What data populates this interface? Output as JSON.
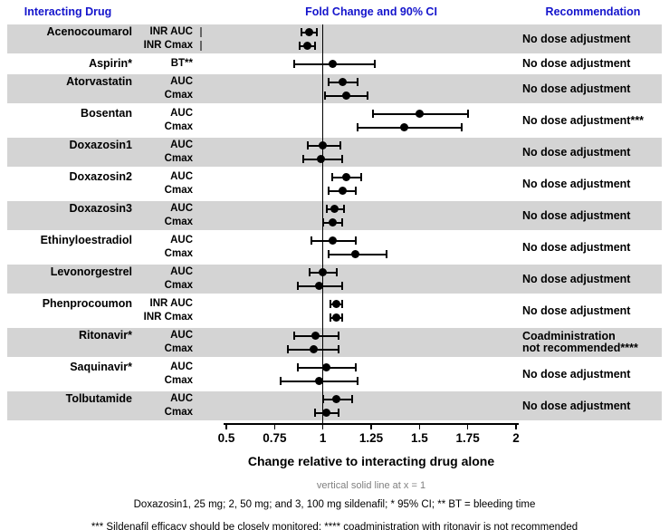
{
  "figure": {
    "header": {
      "interacting_drug": "Interacting Drug",
      "fold_change": "Fold Change and 90% CI",
      "recommendation": "Recommendation"
    },
    "colors": {
      "header_text": "#1414cc",
      "band": "#d4d4d4",
      "marker": "#000000",
      "note_text": "#808080"
    }
  },
  "chart_data": {
    "type": "forest",
    "title": "Fold Change and 90% CI",
    "xlabel": "Change relative to interacting drug alone",
    "x_note": "vertical solid line at x = 1",
    "footnote1": "Doxazosin1, 25 mg; 2, 50 mg; and 3, 100 mg sildenafil; * 95% CI; ** BT = bleeding time",
    "footnote2": "*** Sildenafil efficacy should be closely monitored; **** coadministration with ritonavir is not recommended",
    "xlim": [
      0.5,
      2
    ],
    "reference_line": 1,
    "grid": false,
    "xticks": [
      {
        "value": 0.5,
        "label": "0.5"
      },
      {
        "value": 0.75,
        "label": "0.75"
      },
      {
        "value": 1,
        "label": "1"
      },
      {
        "value": 1.25,
        "label": "1.25"
      },
      {
        "value": 1.5,
        "label": "1.5"
      },
      {
        "value": 1.75,
        "label": "1.75"
      },
      {
        "value": 2,
        "label": "2"
      }
    ],
    "groups": [
      {
        "drug": "Acenocoumarol",
        "shaded": true,
        "recommendation": "No dose adjustment",
        "rows": [
          {
            "measure": "INR AUC",
            "estimate": 0.93,
            "ci_low": 0.89,
            "ci_high": 0.97
          },
          {
            "measure": "INR Cmax",
            "estimate": 0.92,
            "ci_low": 0.88,
            "ci_high": 0.96
          }
        ]
      },
      {
        "drug": "Aspirin*",
        "shaded": false,
        "recommendation": "No dose adjustment",
        "rows": [
          {
            "measure": "BT**",
            "estimate": 1.05,
            "ci_low": 0.85,
            "ci_high": 1.27
          }
        ]
      },
      {
        "drug": "Atorvastatin",
        "shaded": true,
        "recommendation": "No dose adjustment",
        "rows": [
          {
            "measure": "AUC",
            "estimate": 1.1,
            "ci_low": 1.03,
            "ci_high": 1.18
          },
          {
            "measure": "Cmax",
            "estimate": 1.12,
            "ci_low": 1.01,
            "ci_high": 1.23
          }
        ]
      },
      {
        "drug": "Bosentan",
        "shaded": false,
        "recommendation": "No dose adjustment***",
        "rows": [
          {
            "measure": "AUC",
            "estimate": 1.5,
            "ci_low": 1.26,
            "ci_high": 1.75
          },
          {
            "measure": "Cmax",
            "estimate": 1.42,
            "ci_low": 1.18,
            "ci_high": 1.72
          }
        ]
      },
      {
        "drug": "Doxazosin1",
        "shaded": true,
        "recommendation": "No dose adjustment",
        "rows": [
          {
            "measure": "AUC",
            "estimate": 1.0,
            "ci_low": 0.92,
            "ci_high": 1.09
          },
          {
            "measure": "Cmax",
            "estimate": 0.99,
            "ci_low": 0.9,
            "ci_high": 1.1
          }
        ]
      },
      {
        "drug": "Doxazosin2",
        "shaded": false,
        "recommendation": "No dose adjustment",
        "rows": [
          {
            "measure": "AUC",
            "estimate": 1.12,
            "ci_low": 1.05,
            "ci_high": 1.2
          },
          {
            "measure": "Cmax",
            "estimate": 1.1,
            "ci_low": 1.03,
            "ci_high": 1.17
          }
        ]
      },
      {
        "drug": "Doxazosin3",
        "shaded": true,
        "recommendation": "No dose adjustment",
        "rows": [
          {
            "measure": "AUC",
            "estimate": 1.06,
            "ci_low": 1.02,
            "ci_high": 1.11
          },
          {
            "measure": "Cmax",
            "estimate": 1.05,
            "ci_low": 1.0,
            "ci_high": 1.1
          }
        ]
      },
      {
        "drug": "Ethinyloestradiol",
        "shaded": false,
        "recommendation": "No dose adjustment",
        "rows": [
          {
            "measure": "AUC",
            "estimate": 1.05,
            "ci_low": 0.94,
            "ci_high": 1.17
          },
          {
            "measure": "Cmax",
            "estimate": 1.17,
            "ci_low": 1.03,
            "ci_high": 1.33
          }
        ]
      },
      {
        "drug": "Levonorgestrel",
        "shaded": true,
        "recommendation": "No dose adjustment",
        "rows": [
          {
            "measure": "AUC",
            "estimate": 1.0,
            "ci_low": 0.93,
            "ci_high": 1.07
          },
          {
            "measure": "Cmax",
            "estimate": 0.98,
            "ci_low": 0.87,
            "ci_high": 1.1
          }
        ]
      },
      {
        "drug": "Phenprocoumon",
        "shaded": false,
        "recommendation": "No dose adjustment",
        "rows": [
          {
            "measure": "INR AUC",
            "estimate": 1.07,
            "ci_low": 1.04,
            "ci_high": 1.1
          },
          {
            "measure": "INR Cmax",
            "estimate": 1.07,
            "ci_low": 1.04,
            "ci_high": 1.1
          }
        ]
      },
      {
        "drug": "Ritonavir*",
        "shaded": true,
        "recommendation": "Coadministration\nnot recommended****",
        "rows": [
          {
            "measure": "AUC",
            "estimate": 0.96,
            "ci_low": 0.85,
            "ci_high": 1.08
          },
          {
            "measure": "Cmax",
            "estimate": 0.95,
            "ci_low": 0.82,
            "ci_high": 1.08
          }
        ]
      },
      {
        "drug": "Saquinavir*",
        "shaded": false,
        "recommendation": "No dose adjustment",
        "rows": [
          {
            "measure": "AUC",
            "estimate": 1.02,
            "ci_low": 0.87,
            "ci_high": 1.17
          },
          {
            "measure": "Cmax",
            "estimate": 0.98,
            "ci_low": 0.78,
            "ci_high": 1.18
          }
        ]
      },
      {
        "drug": "Tolbutamide",
        "shaded": true,
        "recommendation": "No dose adjustment",
        "rows": [
          {
            "measure": "AUC",
            "estimate": 1.07,
            "ci_low": 1.0,
            "ci_high": 1.15
          },
          {
            "measure": "Cmax",
            "estimate": 1.02,
            "ci_low": 0.96,
            "ci_high": 1.08
          }
        ]
      }
    ]
  }
}
